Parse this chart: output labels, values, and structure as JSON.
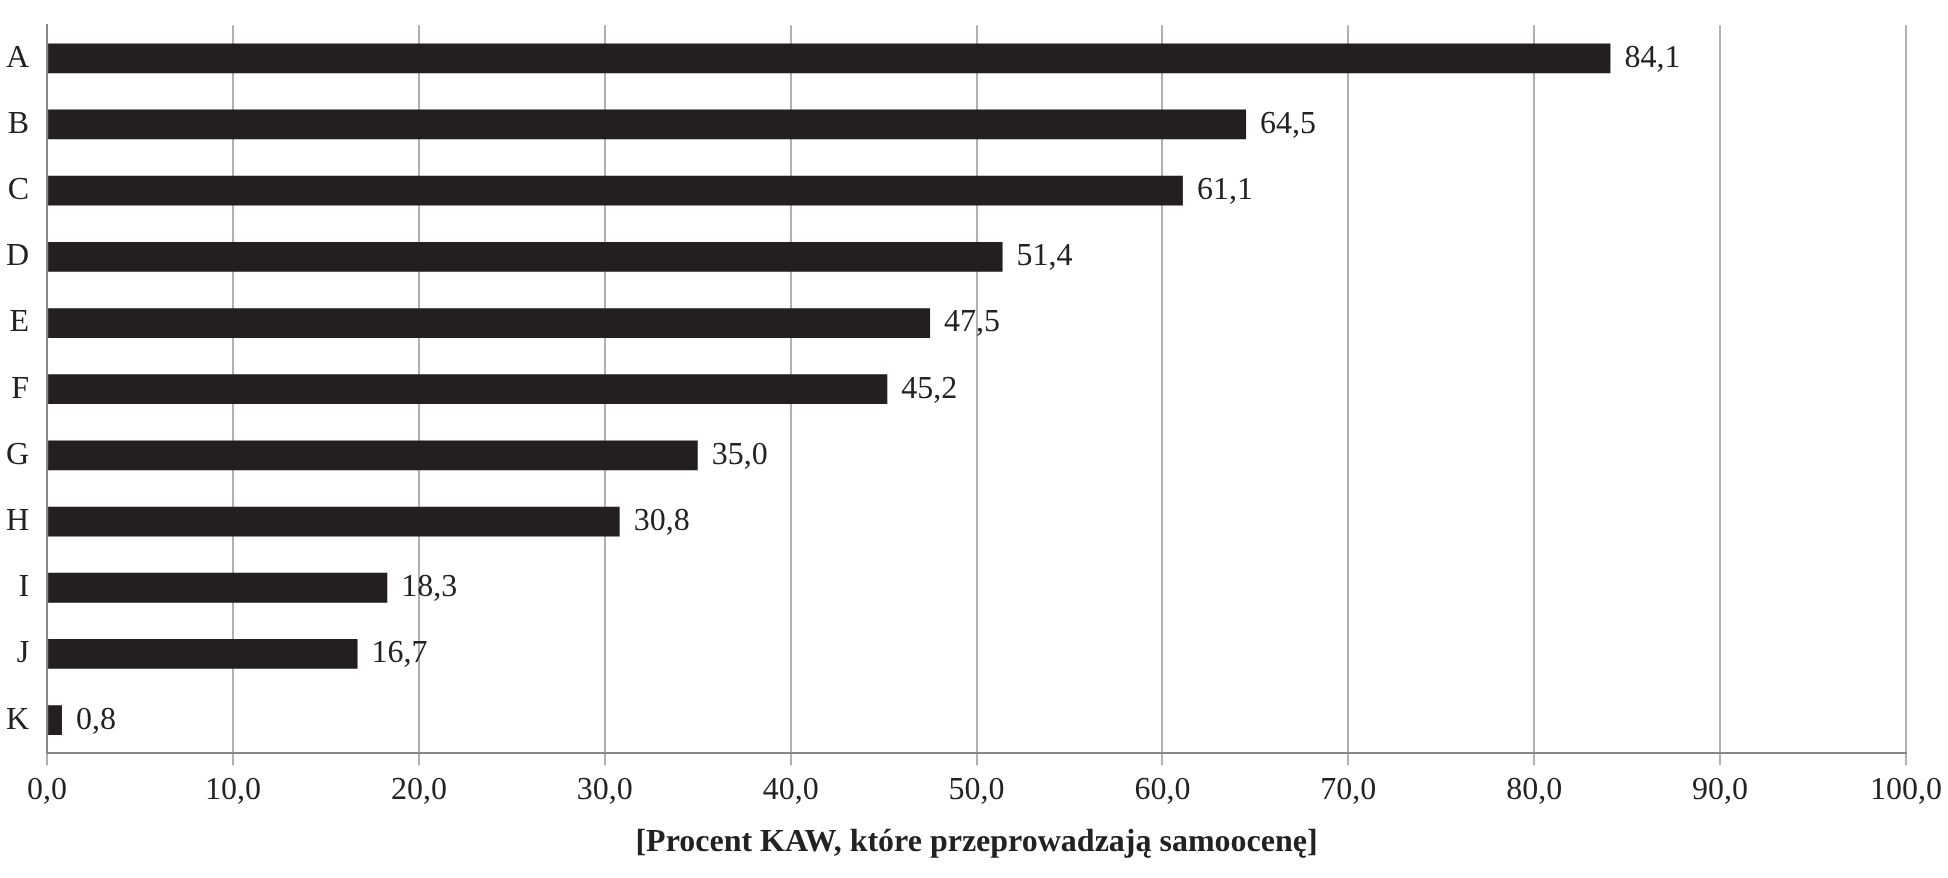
{
  "chart_data": {
    "type": "bar",
    "orientation": "horizontal",
    "xlabel": "[Procent KAW, które przeprowadzają samoocenę]",
    "categories": [
      "A",
      "B",
      "C",
      "D",
      "E",
      "F",
      "G",
      "H",
      "I",
      "J",
      "K"
    ],
    "values": [
      84.1,
      64.5,
      61.1,
      51.4,
      47.5,
      45.2,
      35.0,
      30.8,
      18.3,
      16.7,
      0.8
    ],
    "value_labels": [
      "84,1",
      "64,5",
      "61,1",
      "51,4",
      "47,5",
      "45,2",
      "35,0",
      "30,8",
      "18,3",
      "16,7",
      "0,8"
    ],
    "color": "#231f20",
    "xlim": [
      0,
      100
    ],
    "xticks": [
      {
        "value": 0,
        "label": "0,0"
      },
      {
        "value": 10,
        "label": "10,0"
      },
      {
        "value": 20,
        "label": "20,0"
      },
      {
        "value": 30,
        "label": "30,0"
      },
      {
        "value": 40,
        "label": "40,0"
      },
      {
        "value": 50,
        "label": "50,0"
      },
      {
        "value": 60,
        "label": "60,0"
      },
      {
        "value": 70,
        "label": "70,0"
      },
      {
        "value": 80,
        "label": "80,0"
      },
      {
        "value": 90,
        "label": "90,0"
      },
      {
        "value": 100,
        "label": "100,0"
      }
    ],
    "grid": "x"
  }
}
